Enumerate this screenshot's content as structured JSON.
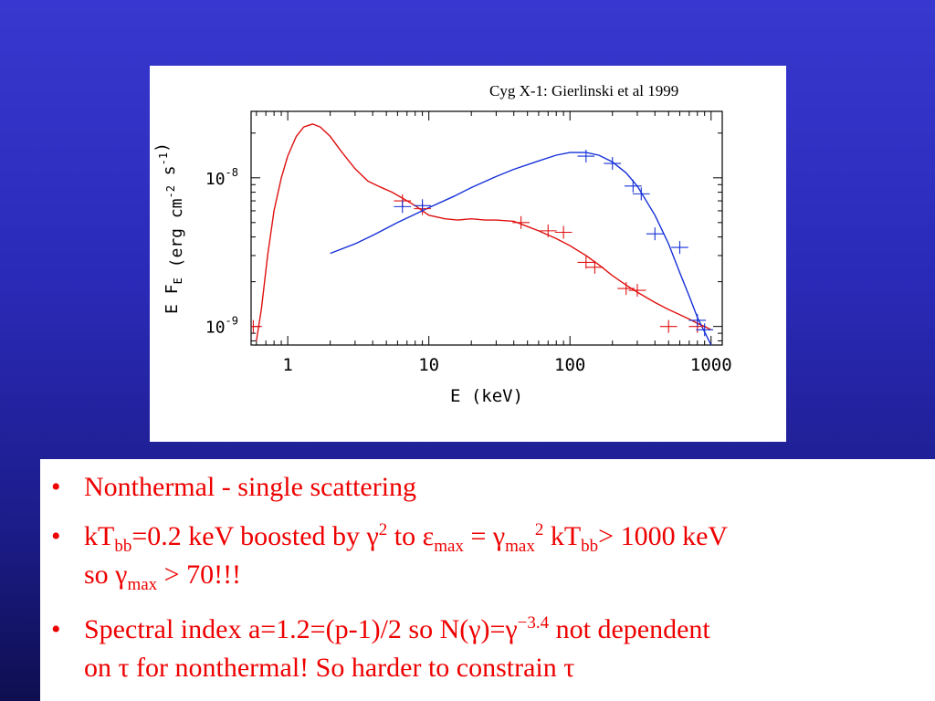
{
  "figure": {
    "caption": "Cyg X-1: Gierlinski et al 1999"
  },
  "chart_data": {
    "type": "line",
    "xscale": "log",
    "yscale": "log",
    "xlim": [
      0.55,
      1200
    ],
    "ylim": [
      7.5e-10,
      2.8e-08
    ],
    "xlabel": "E (keV)",
    "ylabel": "E F_E (erg cm^-2 s^-1)",
    "x_tick_labels": [
      "1",
      "10",
      "100",
      "1000"
    ],
    "x_ticks": [
      1,
      10,
      100,
      1000
    ],
    "y_tick_labels": [
      "10^-9",
      "10^-8"
    ],
    "y_ticks": [
      1e-09,
      1e-08
    ],
    "series": [
      {
        "color": "#e01010",
        "x": [
          0.6,
          0.65,
          0.72,
          0.8,
          0.9,
          1.0,
          1.15,
          1.3,
          1.5,
          1.7,
          2.0,
          2.4,
          3.0,
          3.7,
          4.5,
          5.5,
          6.5,
          8.0,
          10,
          13,
          16,
          20,
          25,
          30,
          40,
          50,
          60,
          80,
          100,
          130,
          160,
          200,
          250,
          300,
          400,
          500,
          600,
          700,
          800,
          900,
          1000
        ],
        "y": [
          8e-10,
          1.3e-09,
          3e-09,
          6e-09,
          1e-08,
          1.4e-08,
          1.9e-08,
          2.2e-08,
          2.3e-08,
          2.2e-08,
          1.9e-08,
          1.5e-08,
          1.15e-08,
          9.5e-09,
          8.7e-09,
          8e-09,
          7.3e-09,
          6.5e-09,
          5.6e-09,
          5.3e-09,
          5.2e-09,
          5.3e-09,
          5.2e-09,
          5.2e-09,
          5.1e-09,
          4.7e-09,
          4.4e-09,
          3.9e-09,
          3.5e-09,
          3e-09,
          2.6e-09,
          2.2e-09,
          1.9e-09,
          1.7e-09,
          1.45e-09,
          1.3e-09,
          1.2e-09,
          1.12e-09,
          1.05e-09,
          1e-09,
          9.5e-10
        ]
      },
      {
        "color": "#1530d8",
        "x": [
          2,
          3,
          4,
          6,
          8,
          10,
          15,
          20,
          30,
          40,
          60,
          80,
          100,
          130,
          160,
          200,
          250,
          300,
          400,
          500,
          600,
          700,
          800,
          1000
        ],
        "y": [
          3.1e-09,
          3.6e-09,
          4.1e-09,
          5e-09,
          5.7e-09,
          6.3e-09,
          7.5e-09,
          8.6e-09,
          1.02e-08,
          1.14e-08,
          1.3e-08,
          1.42e-08,
          1.48e-08,
          1.48e-08,
          1.42e-08,
          1.28e-08,
          1.08e-08,
          8.8e-09,
          5.6e-09,
          3.6e-09,
          2.3e-09,
          1.6e-09,
          1.15e-09,
          7.5e-10
        ]
      }
    ],
    "red_data_points": [
      {
        "x": 0.57,
        "y": 1e-09
      },
      {
        "x": 6.5,
        "y": 7e-09
      },
      {
        "x": 9,
        "y": 6.2e-09
      },
      {
        "x": 45,
        "y": 5e-09
      },
      {
        "x": 70,
        "y": 4.4e-09
      },
      {
        "x": 90,
        "y": 4.3e-09
      },
      {
        "x": 130,
        "y": 2.7e-09
      },
      {
        "x": 150,
        "y": 2.5e-09
      },
      {
        "x": 250,
        "y": 1.8e-09
      },
      {
        "x": 300,
        "y": 1.75e-09
      },
      {
        "x": 500,
        "y": 1e-09
      },
      {
        "x": 800,
        "y": 1e-09
      }
    ],
    "blue_data_points": [
      {
        "x": 6.5,
        "y": 6.4e-09
      },
      {
        "x": 9,
        "y": 6.5e-09
      },
      {
        "x": 130,
        "y": 1.4e-08
      },
      {
        "x": 200,
        "y": 1.25e-08
      },
      {
        "x": 280,
        "y": 8.8e-09
      },
      {
        "x": 320,
        "y": 7.8e-09
      },
      {
        "x": 400,
        "y": 4.2e-09
      },
      {
        "x": 600,
        "y": 3.4e-09
      },
      {
        "x": 800,
        "y": 1.1e-09
      },
      {
        "x": 900,
        "y": 9.5e-10
      }
    ]
  },
  "bullets": [
    {
      "lines": [
        [
          {
            "t": "Nonthermal - single scattering"
          }
        ]
      ]
    },
    {
      "lines": [
        [
          {
            "t": "kT"
          },
          {
            "t": "bb",
            "sub": true
          },
          {
            "t": "=0.2 keV boosted by γ"
          },
          {
            "t": "2",
            "sup": true
          },
          {
            "t": " to ε"
          },
          {
            "t": "max",
            "sub": true
          },
          {
            "t": " = γ"
          },
          {
            "t": "max",
            "sub": true
          },
          {
            "t": "2",
            "sup": true
          },
          {
            "t": " kT"
          },
          {
            "t": "bb",
            "sub": true
          },
          {
            "t": "> 1000 keV"
          }
        ],
        [
          {
            "t": "so γ"
          },
          {
            "t": "max",
            "sub": true
          },
          {
            "t": " > 70!!!"
          }
        ]
      ]
    },
    {
      "lines": [
        [
          {
            "t": "Spectral index a=1.2=(p-1)/2 so N(γ)=γ"
          },
          {
            "t": "−3.4",
            "sup": true
          },
          {
            "t": " not dependent"
          }
        ],
        [
          {
            "t": "on τ for nonthermal! So harder to constrain τ"
          }
        ]
      ]
    }
  ],
  "bullet_symbol": "•"
}
